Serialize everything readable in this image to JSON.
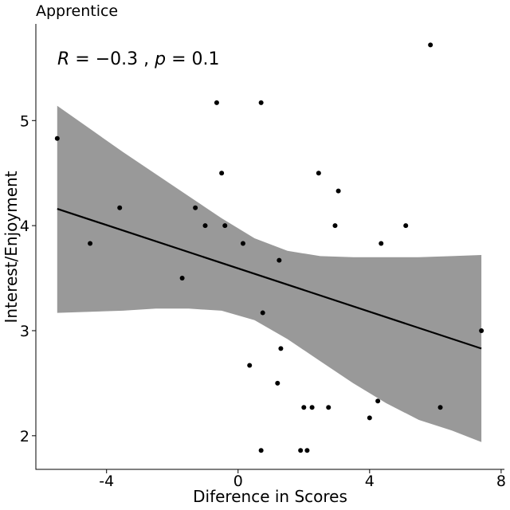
{
  "chart_data": {
    "type": "scatter",
    "title": "Apprentice",
    "xlabel": "Diference in Scores",
    "ylabel": "Interest/Enjoyment",
    "xlim": [
      -6.15,
      8.1
    ],
    "ylim": [
      1.68,
      5.92
    ],
    "xticks": [
      -4,
      0,
      4,
      8
    ],
    "yticks": [
      2,
      3,
      4,
      5
    ],
    "grid": false,
    "annotation": {
      "r_sym": "R",
      "r_value": " = −0.3 , ",
      "p_sym": "p",
      "p_value": " = 0.1"
    },
    "points": [
      {
        "x": -5.5,
        "y": 4.83
      },
      {
        "x": -4.5,
        "y": 3.83
      },
      {
        "x": -3.6,
        "y": 4.17
      },
      {
        "x": -1.7,
        "y": 3.5
      },
      {
        "x": -1.3,
        "y": 4.17
      },
      {
        "x": -1.0,
        "y": 4.0
      },
      {
        "x": -0.65,
        "y": 5.17
      },
      {
        "x": -0.5,
        "y": 4.5
      },
      {
        "x": -0.4,
        "y": 4.0
      },
      {
        "x": 0.15,
        "y": 3.83
      },
      {
        "x": 0.35,
        "y": 2.67
      },
      {
        "x": 0.7,
        "y": 5.17
      },
      {
        "x": 0.7,
        "y": 1.86
      },
      {
        "x": 0.75,
        "y": 3.17
      },
      {
        "x": 1.2,
        "y": 2.5
      },
      {
        "x": 1.25,
        "y": 3.67
      },
      {
        "x": 1.3,
        "y": 2.83
      },
      {
        "x": 1.9,
        "y": 1.86
      },
      {
        "x": 2.0,
        "y": 2.27
      },
      {
        "x": 2.1,
        "y": 1.86
      },
      {
        "x": 2.25,
        "y": 2.27
      },
      {
        "x": 2.45,
        "y": 4.5
      },
      {
        "x": 2.75,
        "y": 2.27
      },
      {
        "x": 2.95,
        "y": 4.0
      },
      {
        "x": 3.05,
        "y": 4.33
      },
      {
        "x": 4.0,
        "y": 2.17
      },
      {
        "x": 4.25,
        "y": 2.33
      },
      {
        "x": 4.35,
        "y": 3.83
      },
      {
        "x": 5.1,
        "y": 4.0
      },
      {
        "x": 5.85,
        "y": 5.72
      },
      {
        "x": 6.15,
        "y": 2.27
      },
      {
        "x": 7.4,
        "y": 3.0
      }
    ],
    "regression": {
      "x": [
        -5.5,
        7.4
      ],
      "y": [
        4.16,
        2.83
      ]
    },
    "confidence_band": {
      "x": [
        -5.5,
        -4.5,
        -3.5,
        -2.5,
        -1.5,
        -0.5,
        0.5,
        1.5,
        2.5,
        3.5,
        4.5,
        5.5,
        6.5,
        7.4
      ],
      "upper": [
        5.14,
        4.92,
        4.7,
        4.49,
        4.28,
        4.07,
        3.88,
        3.76,
        3.71,
        3.7,
        3.7,
        3.7,
        3.71,
        3.72
      ],
      "lower": [
        3.17,
        3.18,
        3.19,
        3.21,
        3.21,
        3.19,
        3.1,
        2.92,
        2.71,
        2.5,
        2.31,
        2.15,
        2.05,
        1.94
      ]
    },
    "colors": {
      "band": "#999999",
      "line": "#000000",
      "point": "#000000"
    }
  }
}
